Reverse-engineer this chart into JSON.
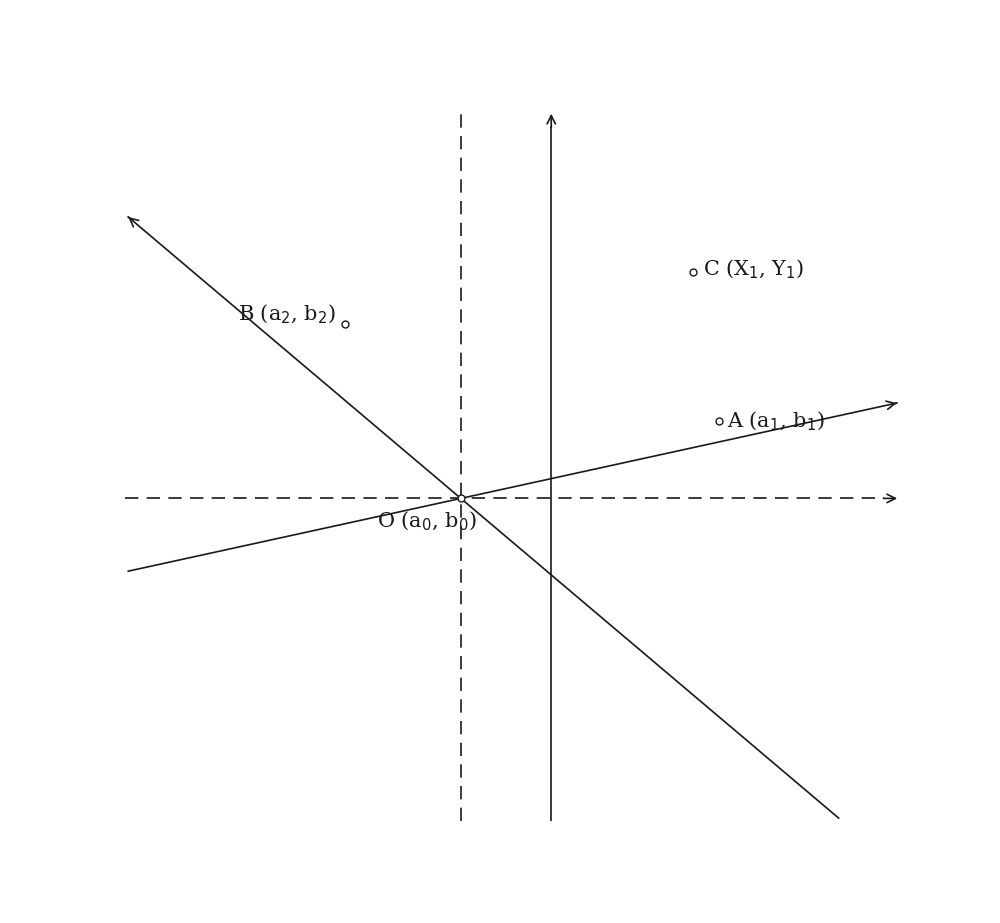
{
  "bg_color": "#ffffff",
  "line_color": "#1a1a1a",
  "xlim": [
    -6,
    6
  ],
  "ylim": [
    -5.5,
    5.5
  ],
  "point_O": [
    -0.8,
    -0.5
  ],
  "point_A": [
    3.2,
    0.7
  ],
  "point_B": [
    -2.6,
    2.2
  ],
  "point_C": [
    2.8,
    3.0
  ],
  "label_O": "O (a₀, b₀)",
  "label_A": "A (a₁, b₁)",
  "label_B": "B (a₂, b₂)",
  "label_C": "C (X₁, Y₁)",
  "fontsize": 15,
  "marker_size": 5,
  "solid_yaxis_x": 0.6,
  "dashed_haxis_y": -0.5,
  "dashed_vline_x": -0.8,
  "line1_dir": [
    3.2,
    0.7
  ],
  "line2_dir": [
    -2.6,
    2.2
  ]
}
